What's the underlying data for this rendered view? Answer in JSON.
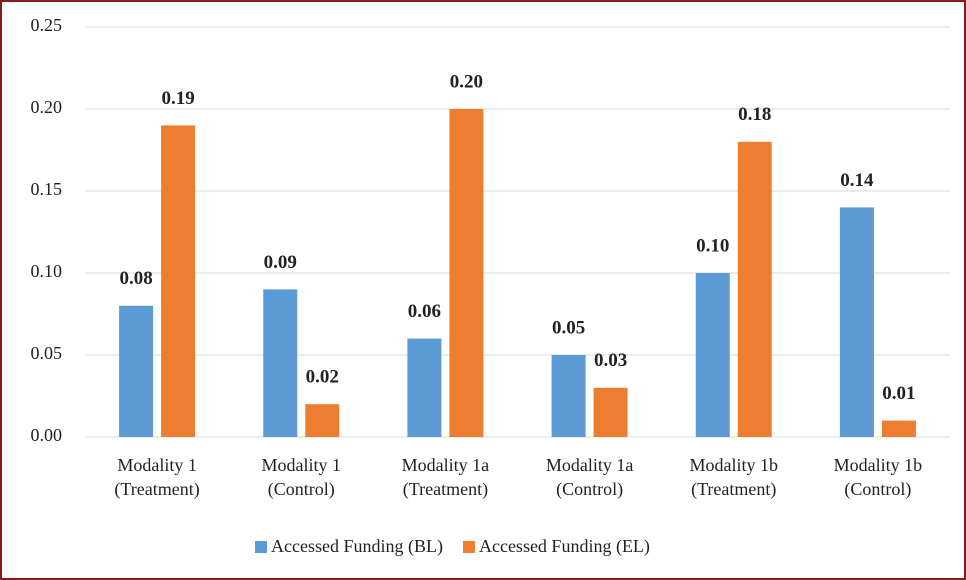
{
  "chart_data": {
    "type": "bar",
    "categories": [
      [
        "Modality 1",
        "(Treatment)"
      ],
      [
        "Modality 1",
        "(Control)"
      ],
      [
        "Modality 1a",
        "(Treatment)"
      ],
      [
        "Modality 1a",
        "(Control)"
      ],
      [
        "Modality 1b",
        "(Treatment)"
      ],
      [
        "Modality 1b",
        "(Control)"
      ]
    ],
    "series": [
      {
        "name": "Accessed Funding (BL)",
        "color": "#5b9bd5",
        "values": [
          0.08,
          0.09,
          0.06,
          0.05,
          0.1,
          0.14
        ],
        "value_labels": [
          "0.08",
          "0.09",
          "0.06",
          "0.05",
          "0.10",
          "0.14"
        ]
      },
      {
        "name": "Accessed Funding (EL)",
        "color": "#ed7d31",
        "values": [
          0.19,
          0.02,
          0.2,
          0.03,
          0.18,
          0.01
        ],
        "value_labels": [
          "0.19",
          "0.02",
          "0.20",
          "0.03",
          "0.18",
          "0.01"
        ]
      }
    ],
    "ylim": [
      0,
      0.25
    ],
    "yticks": [
      {
        "value": 0,
        "label": "0.00"
      },
      0.05,
      {
        "value": 0.1,
        "label": "0.10"
      },
      0.15,
      {
        "value": 0.2,
        "label": "0.20"
      },
      0.25
    ],
    "grid": true,
    "legend": "bottom"
  }
}
